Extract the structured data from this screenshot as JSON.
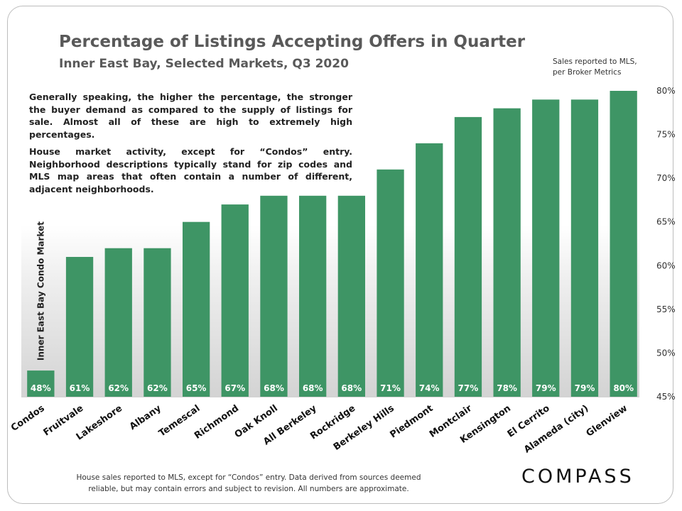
{
  "header": {
    "title": "Percentage of Listings Accepting Offers in Quarter",
    "subtitle": "Inner East Bay, Selected Markets, Q3 2020",
    "source_line1": "Sales reported to MLS,",
    "source_line2": "per Broker Metrics"
  },
  "note": {
    "paragraph1": "Generally speaking, the higher the percentage, the stronger the buyer demand as compared to the supply of listings for sale. Almost all of these are high to extremely high percentages.",
    "paragraph2": "House market activity, except for “Condos” entry. Neighborhood descriptions typically stand for zip codes and MLS map areas that often contain a number of different, adjacent neighborhoods."
  },
  "footer": {
    "line1": "House sales reported to MLS, except for “Condos” entry. Data derived from sources deemed",
    "line2": "reliable, but may contain errors and subject to revision.  All numbers are approximate."
  },
  "logo_text": "COMPASS",
  "colors": {
    "bar": "#3e9565",
    "label": "#ffffff",
    "text": "#111111"
  },
  "chart_data": {
    "type": "bar",
    "title": "Percentage of Listings Accepting Offers in Quarter",
    "categories": [
      "Condos",
      "Fruitvale",
      "Lakeshore",
      "Albany",
      "Temescal",
      "Richmond",
      "Oak Knoll",
      "All Berkeley",
      "Rockridge",
      "Berkeley Hills",
      "Piedmont",
      "Montclair",
      "Kensington",
      "El Cerrito",
      "Alameda (city)",
      "Glenview"
    ],
    "values": [
      48,
      61,
      62,
      62,
      65,
      67,
      68,
      68,
      68,
      71,
      74,
      77,
      78,
      79,
      79,
      80
    ],
    "data_labels": [
      "48%",
      "61%",
      "62%",
      "62%",
      "65%",
      "67%",
      "68%",
      "68%",
      "68%",
      "71%",
      "74%",
      "77%",
      "78%",
      "79%",
      "79%",
      "80%"
    ],
    "ylim": [
      45,
      80
    ],
    "yticks": [
      45,
      50,
      55,
      60,
      65,
      70,
      75,
      80
    ],
    "ytick_labels": [
      "45%",
      "50%",
      "55%",
      "60%",
      "65%",
      "70%",
      "75%",
      "80%"
    ],
    "y_axis_side": "right",
    "grid": false,
    "annotation": "Inner East Bay Condo Market"
  }
}
